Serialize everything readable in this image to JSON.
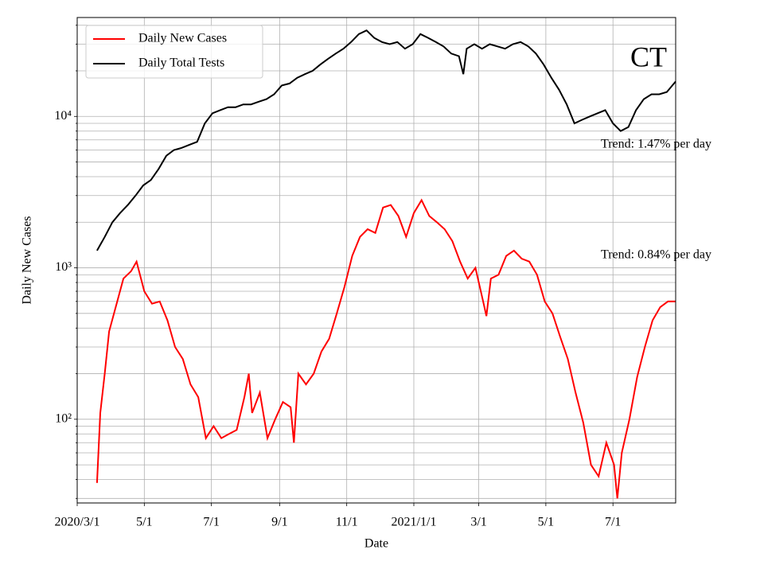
{
  "chart_data": {
    "type": "line",
    "xlabel": "Date",
    "ylabel": "Daily New Cases",
    "log_y": true,
    "grid": true,
    "legend": "upper left",
    "xlim": [
      "2020-03-01",
      "2021-08-27"
    ],
    "xticks": [
      {
        "value": "2020-03-01",
        "label": "2020/3/1"
      },
      {
        "value": "2020-05-01",
        "label": "5/1"
      },
      {
        "value": "2020-07-01",
        "label": "7/1"
      },
      {
        "value": "2020-09-01",
        "label": "9/1"
      },
      {
        "value": "2020-11-01",
        "label": "11/1"
      },
      {
        "value": "2021-01-01",
        "label": "2021/1/1"
      },
      {
        "value": "2021-03-01",
        "label": "3/1"
      },
      {
        "value": "2021-05-01",
        "label": "5/1"
      },
      {
        "value": "2021-07-01",
        "label": "7/1"
      }
    ],
    "ylim": [
      28,
      45000
    ],
    "yticks": [
      {
        "value": 100,
        "label": "10²"
      },
      {
        "value": 1000,
        "label": "10³"
      },
      {
        "value": 10000,
        "label": "10⁴"
      }
    ],
    "yticks_minor": [
      30,
      40,
      50,
      60,
      70,
      80,
      90,
      200,
      300,
      400,
      500,
      600,
      700,
      800,
      900,
      2000,
      3000,
      4000,
      5000,
      6000,
      7000,
      8000,
      9000,
      20000,
      30000,
      40000
    ],
    "annotations": [
      "CT",
      "Trend: 1.47% per day",
      "Trend: 0.84% per day"
    ],
    "series": [
      {
        "name": "Daily New Cases",
        "color": "#ff0000",
        "x": [
          "2020-03-19",
          "2020-03-22",
          "2020-03-26",
          "2020-03-30",
          "2020-04-05",
          "2020-04-12",
          "2020-04-19",
          "2020-04-24",
          "2020-05-01",
          "2020-05-08",
          "2020-05-15",
          "2020-05-22",
          "2020-05-29",
          "2020-06-05",
          "2020-06-12",
          "2020-06-19",
          "2020-06-26",
          "2020-07-03",
          "2020-07-10",
          "2020-07-17",
          "2020-07-24",
          "2020-07-31",
          "2020-08-04",
          "2020-08-07",
          "2020-08-14",
          "2020-08-21",
          "2020-08-28",
          "2020-09-04",
          "2020-09-11",
          "2020-09-14",
          "2020-09-18",
          "2020-09-25",
          "2020-10-02",
          "2020-10-09",
          "2020-10-16",
          "2020-10-23",
          "2020-10-30",
          "2020-11-06",
          "2020-11-13",
          "2020-11-20",
          "2020-11-27",
          "2020-12-04",
          "2020-12-11",
          "2020-12-18",
          "2020-12-25",
          "2021-01-01",
          "2021-01-08",
          "2021-01-15",
          "2021-01-22",
          "2021-01-29",
          "2021-02-05",
          "2021-02-12",
          "2021-02-19",
          "2021-02-26",
          "2021-03-05",
          "2021-03-08",
          "2021-03-12",
          "2021-03-19",
          "2021-03-26",
          "2021-04-02",
          "2021-04-09",
          "2021-04-16",
          "2021-04-23",
          "2021-04-30",
          "2021-05-07",
          "2021-05-14",
          "2021-05-21",
          "2021-05-28",
          "2021-06-04",
          "2021-06-11",
          "2021-06-18",
          "2021-06-25",
          "2021-07-02",
          "2021-07-05",
          "2021-07-09",
          "2021-07-16",
          "2021-07-23",
          "2021-07-30",
          "2021-08-06",
          "2021-08-13",
          "2021-08-20",
          "2021-08-27"
        ],
        "values": [
          38,
          110,
          200,
          380,
          550,
          850,
          950,
          1100,
          700,
          580,
          600,
          450,
          300,
          250,
          170,
          140,
          75,
          90,
          75,
          80,
          85,
          140,
          200,
          110,
          150,
          75,
          100,
          130,
          120,
          70,
          200,
          170,
          200,
          280,
          340,
          500,
          750,
          1200,
          1600,
          1800,
          1700,
          2500,
          2600,
          2200,
          1600,
          2300,
          2800,
          2200,
          2000,
          1800,
          1500,
          1100,
          850,
          1000,
          600,
          480,
          850,
          900,
          1200,
          1300,
          1150,
          1100,
          900,
          600,
          500,
          350,
          250,
          150,
          95,
          50,
          42,
          70,
          50,
          30,
          60,
          100,
          190,
          300,
          450,
          550,
          600,
          600
        ]
      },
      {
        "name": "Daily Total Tests",
        "color": "#000000",
        "x": [
          "2020-03-19",
          "2020-03-26",
          "2020-04-02",
          "2020-04-09",
          "2020-04-16",
          "2020-04-23",
          "2020-04-30",
          "2020-05-07",
          "2020-05-14",
          "2020-05-21",
          "2020-05-28",
          "2020-06-04",
          "2020-06-11",
          "2020-06-18",
          "2020-06-25",
          "2020-07-02",
          "2020-07-09",
          "2020-07-16",
          "2020-07-23",
          "2020-07-30",
          "2020-08-06",
          "2020-08-13",
          "2020-08-20",
          "2020-08-27",
          "2020-09-03",
          "2020-09-10",
          "2020-09-17",
          "2020-09-24",
          "2020-10-01",
          "2020-10-08",
          "2020-10-15",
          "2020-10-22",
          "2020-10-29",
          "2020-11-05",
          "2020-11-12",
          "2020-11-19",
          "2020-11-26",
          "2020-12-03",
          "2020-12-10",
          "2020-12-17",
          "2020-12-24",
          "2020-12-31",
          "2021-01-07",
          "2021-01-14",
          "2021-01-21",
          "2021-01-28",
          "2021-02-04",
          "2021-02-11",
          "2021-02-15",
          "2021-02-18",
          "2021-02-25",
          "2021-03-04",
          "2021-03-11",
          "2021-03-18",
          "2021-03-25",
          "2021-04-01",
          "2021-04-08",
          "2021-04-15",
          "2021-04-22",
          "2021-04-29",
          "2021-05-06",
          "2021-05-13",
          "2021-05-20",
          "2021-05-27",
          "2021-06-03",
          "2021-06-10",
          "2021-06-17",
          "2021-06-24",
          "2021-07-01",
          "2021-07-08",
          "2021-07-15",
          "2021-07-22",
          "2021-07-29",
          "2021-08-05",
          "2021-08-12",
          "2021-08-19",
          "2021-08-27"
        ],
        "values": [
          1300,
          1600,
          2000,
          2300,
          2600,
          3000,
          3500,
          3800,
          4500,
          5500,
          6000,
          6200,
          6500,
          6800,
          9000,
          10500,
          11000,
          11500,
          11500,
          12000,
          12000,
          12500,
          13000,
          14000,
          16000,
          16500,
          18000,
          19000,
          20000,
          22000,
          24000,
          26000,
          28000,
          31000,
          35000,
          37000,
          33000,
          31000,
          30000,
          31000,
          28000,
          30000,
          35000,
          33000,
          31000,
          29000,
          26000,
          25000,
          19000,
          28000,
          30000,
          28000,
          30000,
          29000,
          28000,
          30000,
          31000,
          29000,
          26000,
          22000,
          18000,
          15000,
          12000,
          9000,
          9500,
          10000,
          10500,
          11000,
          9000,
          8000,
          8500,
          11000,
          13000,
          14000,
          14000,
          14500,
          17000
        ]
      }
    ]
  }
}
